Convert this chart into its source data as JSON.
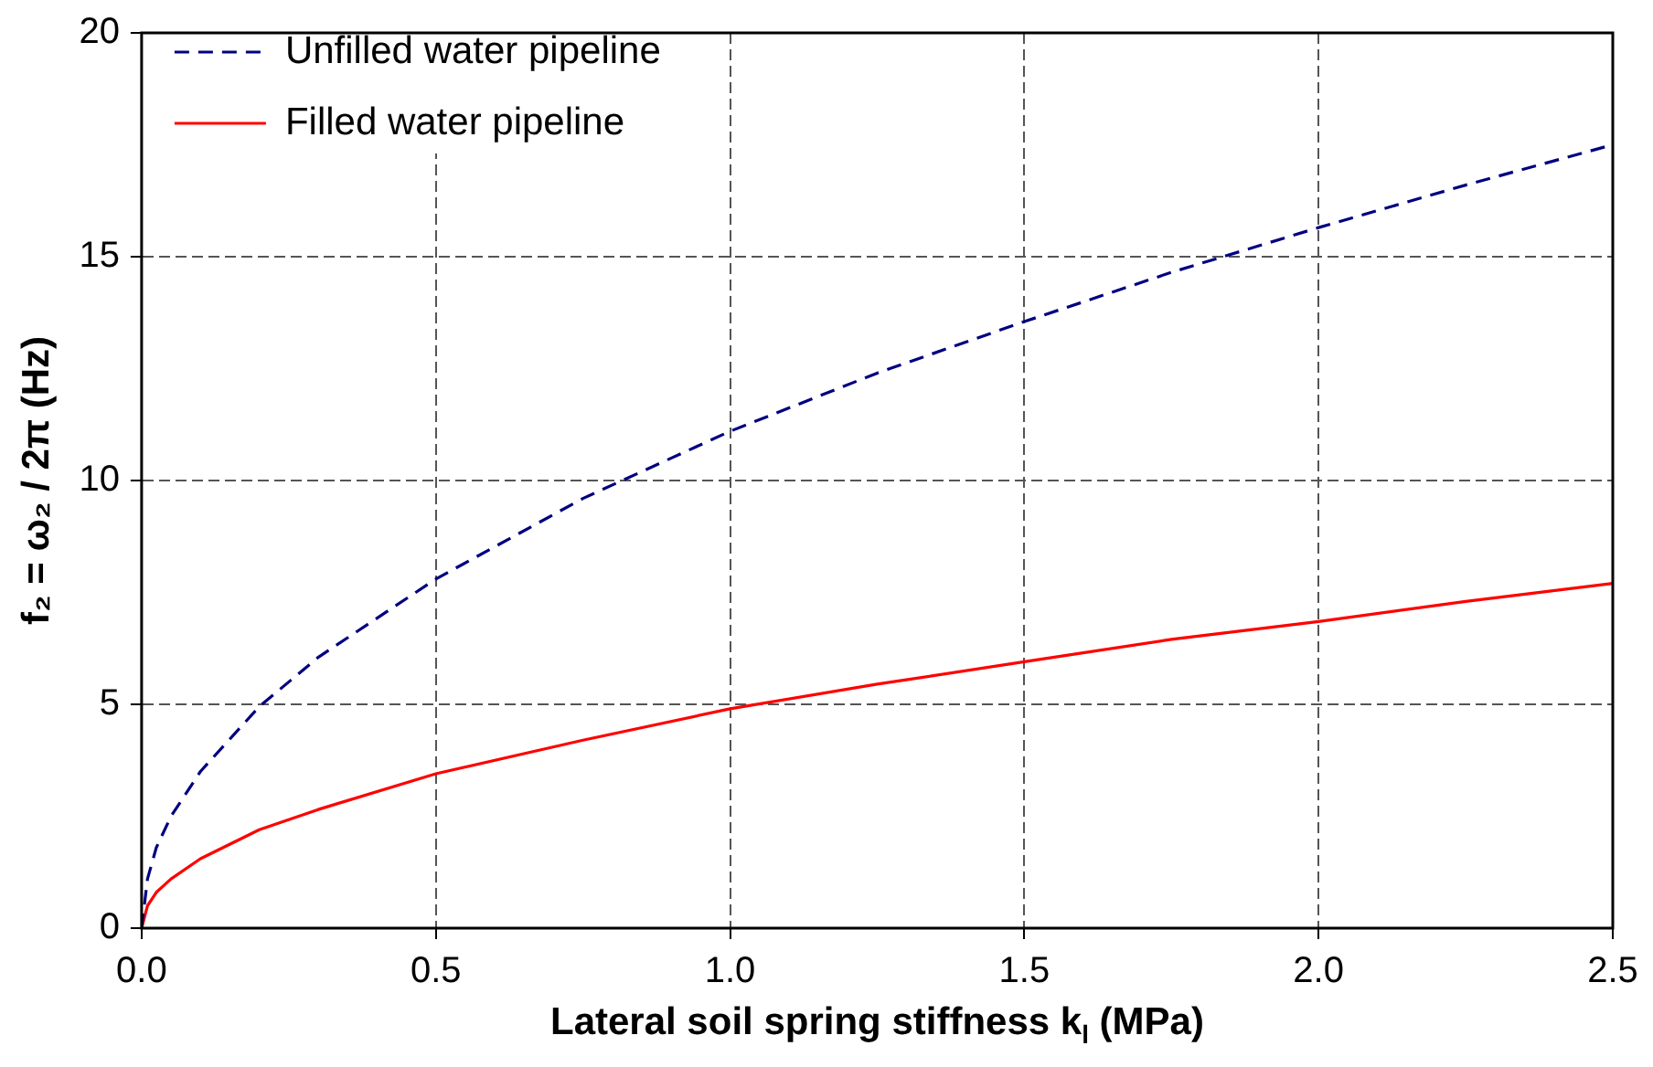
{
  "chart_data": {
    "type": "line",
    "xlabel": "Lateral soil spring stiffness k$_{l}$ (MPa)",
    "ylabel": "f₂ = ω₂ / 2π (Hz)",
    "xlim": [
      0,
      2.5
    ],
    "xticks": [
      {
        "value": 0,
        "label": "0.0"
      },
      {
        "value": 0.5,
        "label": "0.5"
      },
      {
        "value": 1,
        "label": "1.0"
      },
      {
        "value": 1.5,
        "label": "1.5"
      },
      {
        "value": 2,
        "label": "2.0"
      },
      {
        "value": 2.5,
        "label": "2.5"
      }
    ],
    "ylim": [
      0,
      20
    ],
    "yticks": [
      0,
      5,
      10,
      15,
      20
    ],
    "grid": true,
    "legend": "top left",
    "marker": "none",
    "x": [
      0,
      0.01,
      0.025,
      0.05,
      0.1,
      0.2,
      0.3,
      0.5,
      0.75,
      1.0,
      1.25,
      1.5,
      1.75,
      2.0,
      2.25,
      2.5
    ],
    "series": [
      {
        "name": "Unfilled water pipeline",
        "color": "#000080",
        "line_style": "dashed",
        "values": [
          0,
          1.1,
          1.8,
          2.5,
          3.5,
          4.95,
          6.05,
          7.8,
          9.6,
          11.1,
          12.4,
          13.55,
          14.65,
          15.65,
          16.6,
          17.5
        ]
      },
      {
        "name": "Filled water pipeline",
        "color": "#ff0000",
        "line_style": "solid",
        "values": [
          0,
          0.5,
          0.8,
          1.1,
          1.55,
          2.2,
          2.65,
          3.45,
          4.2,
          4.9,
          5.45,
          5.95,
          6.45,
          6.85,
          7.3,
          7.7
        ]
      }
    ]
  }
}
